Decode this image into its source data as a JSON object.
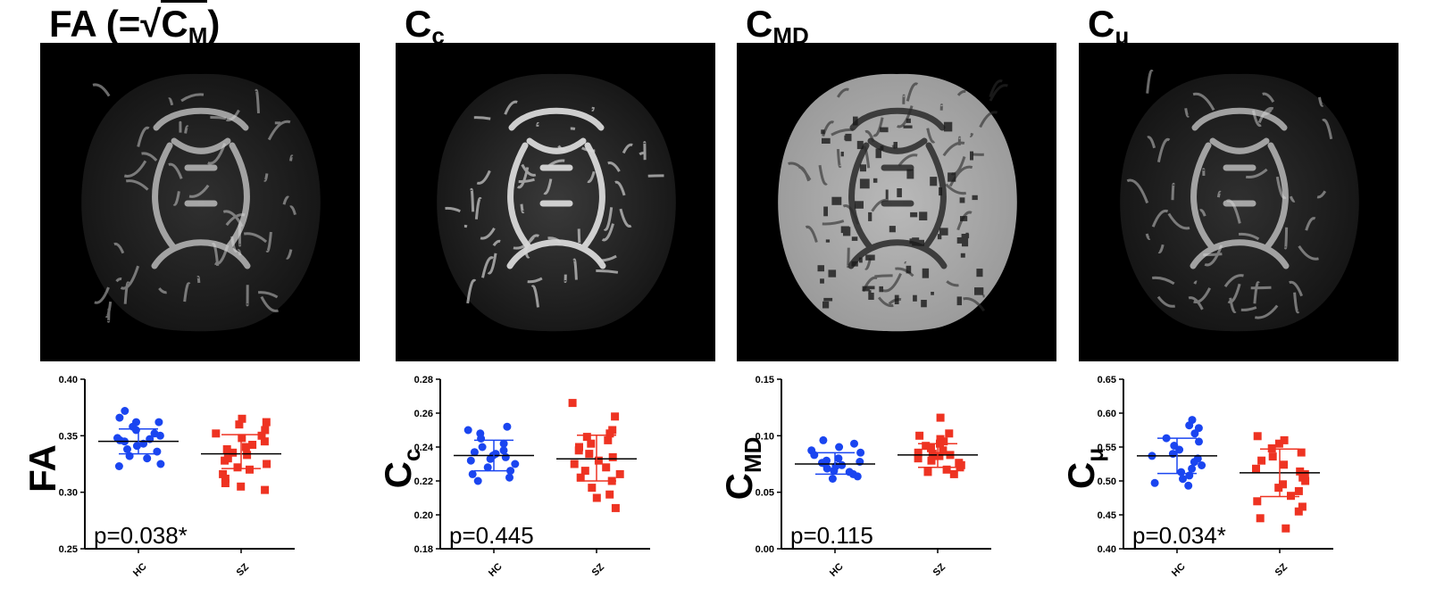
{
  "panels": [
    {
      "id": "fa",
      "title": {
        "main": "FA (=√C",
        "sub": "M",
        "suffix": ")"
      },
      "image_style": "dim",
      "chart_data": {
        "type": "scatter",
        "ylabel": {
          "main": "FA",
          "sub": ""
        },
        "categories": [
          "HC",
          "SZ"
        ],
        "ylim": [
          0.25,
          0.4
        ],
        "yticks": [
          "0.25",
          "0.30",
          "0.35",
          "0.40"
        ],
        "annotation": "p=0.038*",
        "series": [
          {
            "category": "HC",
            "marker": "circle",
            "color": "#1a45f0",
            "mean": 0.345,
            "sd_low": 0.334,
            "sd_high": 0.356,
            "values": [
              0.372,
              0.366,
              0.362,
              0.362,
              0.358,
              0.355,
              0.352,
              0.35,
              0.348,
              0.347,
              0.346,
              0.345,
              0.343,
              0.341,
              0.338,
              0.336,
              0.332,
              0.33,
              0.325,
              0.323
            ]
          },
          {
            "category": "SZ",
            "marker": "square",
            "color": "#ee3322",
            "mean": 0.334,
            "sd_low": 0.321,
            "sd_high": 0.351,
            "values": [
              0.365,
              0.362,
              0.36,
              0.355,
              0.352,
              0.35,
              0.348,
              0.345,
              0.342,
              0.34,
              0.338,
              0.335,
              0.333,
              0.33,
              0.328,
              0.325,
              0.322,
              0.32,
              0.316,
              0.312,
              0.308,
              0.305,
              0.302
            ]
          }
        ]
      }
    },
    {
      "id": "cc",
      "title": {
        "main": "C",
        "sub": "c",
        "suffix": ""
      },
      "image_style": "bright",
      "chart_data": {
        "type": "scatter",
        "ylabel": {
          "main": "C",
          "sub": "c"
        },
        "categories": [
          "HC",
          "SZ"
        ],
        "ylim": [
          0.18,
          0.28
        ],
        "yticks": [
          "0.18",
          "0.20",
          "0.22",
          "0.24",
          "0.26",
          "0.28"
        ],
        "annotation": "p=0.445",
        "series": [
          {
            "category": "HC",
            "marker": "circle",
            "color": "#1a45f0",
            "mean": 0.235,
            "sd_low": 0.226,
            "sd_high": 0.244,
            "values": [
              0.252,
              0.25,
              0.248,
              0.245,
              0.242,
              0.24,
              0.238,
              0.237,
              0.236,
              0.235,
              0.234,
              0.233,
              0.232,
              0.23,
              0.228,
              0.226,
              0.224,
              0.222,
              0.22
            ]
          },
          {
            "category": "SZ",
            "marker": "square",
            "color": "#ee3322",
            "mean": 0.233,
            "sd_low": 0.22,
            "sd_high": 0.247,
            "values": [
              0.266,
              0.258,
              0.25,
              0.248,
              0.246,
              0.244,
              0.242,
              0.24,
              0.238,
              0.236,
              0.234,
              0.232,
              0.23,
              0.228,
              0.226,
              0.224,
              0.222,
              0.22,
              0.216,
              0.212,
              0.21,
              0.204
            ]
          }
        ]
      }
    },
    {
      "id": "cmd",
      "title": {
        "main": "C",
        "sub": "MD",
        "suffix": ""
      },
      "image_style": "md",
      "chart_data": {
        "type": "scatter",
        "ylabel": {
          "main": "C",
          "sub": "MD"
        },
        "categories": [
          "HC",
          "SZ"
        ],
        "ylim": [
          0.0,
          0.15
        ],
        "yticks": [
          "0.00",
          "0.05",
          "0.10",
          "0.15"
        ],
        "annotation": "p=0.115",
        "series": [
          {
            "category": "HC",
            "marker": "circle",
            "color": "#1a45f0",
            "mean": 0.075,
            "sd_low": 0.066,
            "sd_high": 0.085,
            "values": [
              0.096,
              0.093,
              0.09,
              0.087,
              0.085,
              0.083,
              0.08,
              0.078,
              0.077,
              0.076,
              0.075,
              0.074,
              0.073,
              0.071,
              0.069,
              0.068,
              0.066,
              0.064,
              0.062
            ]
          },
          {
            "category": "SZ",
            "marker": "square",
            "color": "#ee3322",
            "mean": 0.083,
            "sd_low": 0.072,
            "sd_high": 0.093,
            "values": [
              0.116,
              0.102,
              0.1,
              0.097,
              0.095,
              0.093,
              0.091,
              0.089,
              0.087,
              0.085,
              0.084,
              0.083,
              0.082,
              0.08,
              0.078,
              0.076,
              0.074,
              0.072,
              0.07,
              0.068,
              0.066
            ]
          }
        ]
      }
    },
    {
      "id": "cmu",
      "title": {
        "main": "C",
        "sub": "μ",
        "suffix": ""
      },
      "image_style": "dim",
      "chart_data": {
        "type": "scatter",
        "ylabel": {
          "main": "C",
          "sub": "μ"
        },
        "categories": [
          "HC",
          "SZ"
        ],
        "ylim": [
          0.4,
          0.65
        ],
        "yticks": [
          "0.40",
          "0.45",
          "0.50",
          "0.55",
          "0.60",
          "0.65"
        ],
        "annotation": "p=0.034*",
        "series": [
          {
            "category": "HC",
            "marker": "circle",
            "color": "#1a45f0",
            "mean": 0.537,
            "sd_low": 0.511,
            "sd_high": 0.563,
            "values": [
              0.59,
              0.582,
              0.578,
              0.57,
              0.563,
              0.558,
              0.552,
              0.546,
              0.54,
              0.537,
              0.533,
              0.528,
              0.523,
              0.518,
              0.513,
              0.508,
              0.503,
              0.497,
              0.493
            ]
          },
          {
            "category": "SZ",
            "marker": "square",
            "color": "#ee3322",
            "mean": 0.512,
            "sd_low": 0.477,
            "sd_high": 0.547,
            "values": [
              0.566,
              0.56,
              0.555,
              0.548,
              0.542,
              0.536,
              0.53,
              0.524,
              0.518,
              0.514,
              0.51,
              0.505,
              0.5,
              0.495,
              0.49,
              0.485,
              0.478,
              0.47,
              0.462,
              0.455,
              0.445,
              0.43
            ]
          }
        ]
      }
    }
  ]
}
